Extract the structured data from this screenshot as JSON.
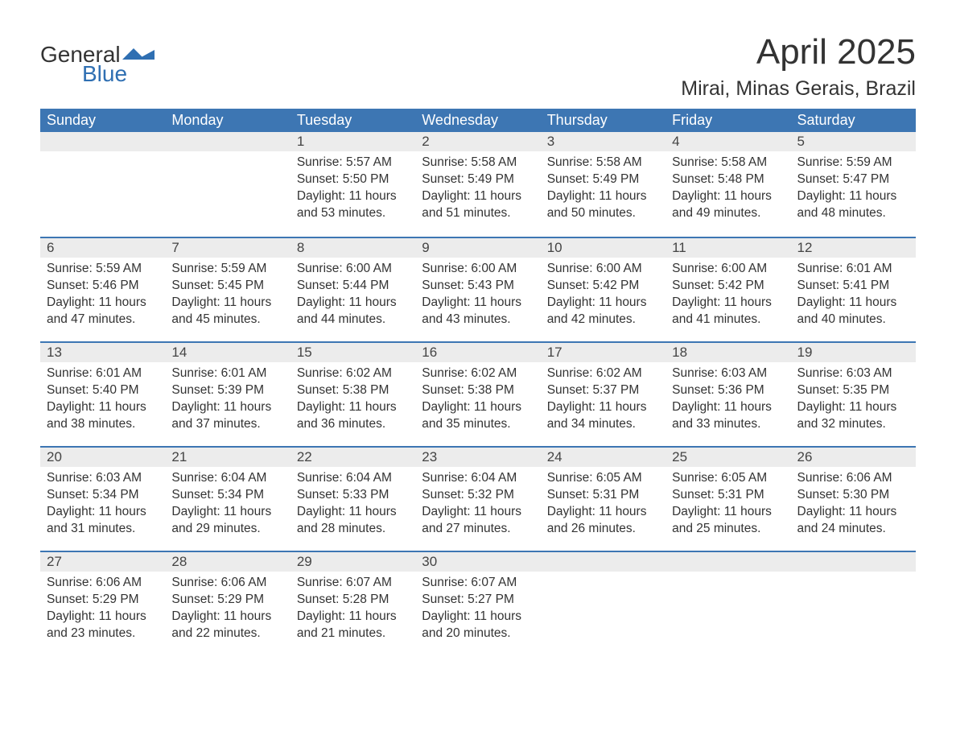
{
  "logo": {
    "word1": "General",
    "word2": "Blue"
  },
  "title": "April 2025",
  "location": "Mirai, Minas Gerais, Brazil",
  "colors": {
    "header_bg": "#3d76b3",
    "header_text": "#ffffff",
    "daynum_bg": "#ececec",
    "border_top": "#3d76b3",
    "text": "#333333",
    "logo_accent": "#2f6fb2",
    "page_bg": "#ffffff"
  },
  "fonts": {
    "title_size_pt": 33,
    "location_size_pt": 19,
    "header_size_pt": 14,
    "daynum_size_pt": 13,
    "body_size_pt": 12
  },
  "weekdays": [
    "Sunday",
    "Monday",
    "Tuesday",
    "Wednesday",
    "Thursday",
    "Friday",
    "Saturday"
  ],
  "weeks": [
    [
      null,
      null,
      {
        "n": "1",
        "sunrise": "Sunrise: 5:57 AM",
        "sunset": "Sunset: 5:50 PM",
        "day1": "Daylight: 11 hours",
        "day2": "and 53 minutes."
      },
      {
        "n": "2",
        "sunrise": "Sunrise: 5:58 AM",
        "sunset": "Sunset: 5:49 PM",
        "day1": "Daylight: 11 hours",
        "day2": "and 51 minutes."
      },
      {
        "n": "3",
        "sunrise": "Sunrise: 5:58 AM",
        "sunset": "Sunset: 5:49 PM",
        "day1": "Daylight: 11 hours",
        "day2": "and 50 minutes."
      },
      {
        "n": "4",
        "sunrise": "Sunrise: 5:58 AM",
        "sunset": "Sunset: 5:48 PM",
        "day1": "Daylight: 11 hours",
        "day2": "and 49 minutes."
      },
      {
        "n": "5",
        "sunrise": "Sunrise: 5:59 AM",
        "sunset": "Sunset: 5:47 PM",
        "day1": "Daylight: 11 hours",
        "day2": "and 48 minutes."
      }
    ],
    [
      {
        "n": "6",
        "sunrise": "Sunrise: 5:59 AM",
        "sunset": "Sunset: 5:46 PM",
        "day1": "Daylight: 11 hours",
        "day2": "and 47 minutes."
      },
      {
        "n": "7",
        "sunrise": "Sunrise: 5:59 AM",
        "sunset": "Sunset: 5:45 PM",
        "day1": "Daylight: 11 hours",
        "day2": "and 45 minutes."
      },
      {
        "n": "8",
        "sunrise": "Sunrise: 6:00 AM",
        "sunset": "Sunset: 5:44 PM",
        "day1": "Daylight: 11 hours",
        "day2": "and 44 minutes."
      },
      {
        "n": "9",
        "sunrise": "Sunrise: 6:00 AM",
        "sunset": "Sunset: 5:43 PM",
        "day1": "Daylight: 11 hours",
        "day2": "and 43 minutes."
      },
      {
        "n": "10",
        "sunrise": "Sunrise: 6:00 AM",
        "sunset": "Sunset: 5:42 PM",
        "day1": "Daylight: 11 hours",
        "day2": "and 42 minutes."
      },
      {
        "n": "11",
        "sunrise": "Sunrise: 6:00 AM",
        "sunset": "Sunset: 5:42 PM",
        "day1": "Daylight: 11 hours",
        "day2": "and 41 minutes."
      },
      {
        "n": "12",
        "sunrise": "Sunrise: 6:01 AM",
        "sunset": "Sunset: 5:41 PM",
        "day1": "Daylight: 11 hours",
        "day2": "and 40 minutes."
      }
    ],
    [
      {
        "n": "13",
        "sunrise": "Sunrise: 6:01 AM",
        "sunset": "Sunset: 5:40 PM",
        "day1": "Daylight: 11 hours",
        "day2": "and 38 minutes."
      },
      {
        "n": "14",
        "sunrise": "Sunrise: 6:01 AM",
        "sunset": "Sunset: 5:39 PM",
        "day1": "Daylight: 11 hours",
        "day2": "and 37 minutes."
      },
      {
        "n": "15",
        "sunrise": "Sunrise: 6:02 AM",
        "sunset": "Sunset: 5:38 PM",
        "day1": "Daylight: 11 hours",
        "day2": "and 36 minutes."
      },
      {
        "n": "16",
        "sunrise": "Sunrise: 6:02 AM",
        "sunset": "Sunset: 5:38 PM",
        "day1": "Daylight: 11 hours",
        "day2": "and 35 minutes."
      },
      {
        "n": "17",
        "sunrise": "Sunrise: 6:02 AM",
        "sunset": "Sunset: 5:37 PM",
        "day1": "Daylight: 11 hours",
        "day2": "and 34 minutes."
      },
      {
        "n": "18",
        "sunrise": "Sunrise: 6:03 AM",
        "sunset": "Sunset: 5:36 PM",
        "day1": "Daylight: 11 hours",
        "day2": "and 33 minutes."
      },
      {
        "n": "19",
        "sunrise": "Sunrise: 6:03 AM",
        "sunset": "Sunset: 5:35 PM",
        "day1": "Daylight: 11 hours",
        "day2": "and 32 minutes."
      }
    ],
    [
      {
        "n": "20",
        "sunrise": "Sunrise: 6:03 AM",
        "sunset": "Sunset: 5:34 PM",
        "day1": "Daylight: 11 hours",
        "day2": "and 31 minutes."
      },
      {
        "n": "21",
        "sunrise": "Sunrise: 6:04 AM",
        "sunset": "Sunset: 5:34 PM",
        "day1": "Daylight: 11 hours",
        "day2": "and 29 minutes."
      },
      {
        "n": "22",
        "sunrise": "Sunrise: 6:04 AM",
        "sunset": "Sunset: 5:33 PM",
        "day1": "Daylight: 11 hours",
        "day2": "and 28 minutes."
      },
      {
        "n": "23",
        "sunrise": "Sunrise: 6:04 AM",
        "sunset": "Sunset: 5:32 PM",
        "day1": "Daylight: 11 hours",
        "day2": "and 27 minutes."
      },
      {
        "n": "24",
        "sunrise": "Sunrise: 6:05 AM",
        "sunset": "Sunset: 5:31 PM",
        "day1": "Daylight: 11 hours",
        "day2": "and 26 minutes."
      },
      {
        "n": "25",
        "sunrise": "Sunrise: 6:05 AM",
        "sunset": "Sunset: 5:31 PM",
        "day1": "Daylight: 11 hours",
        "day2": "and 25 minutes."
      },
      {
        "n": "26",
        "sunrise": "Sunrise: 6:06 AM",
        "sunset": "Sunset: 5:30 PM",
        "day1": "Daylight: 11 hours",
        "day2": "and 24 minutes."
      }
    ],
    [
      {
        "n": "27",
        "sunrise": "Sunrise: 6:06 AM",
        "sunset": "Sunset: 5:29 PM",
        "day1": "Daylight: 11 hours",
        "day2": "and 23 minutes."
      },
      {
        "n": "28",
        "sunrise": "Sunrise: 6:06 AM",
        "sunset": "Sunset: 5:29 PM",
        "day1": "Daylight: 11 hours",
        "day2": "and 22 minutes."
      },
      {
        "n": "29",
        "sunrise": "Sunrise: 6:07 AM",
        "sunset": "Sunset: 5:28 PM",
        "day1": "Daylight: 11 hours",
        "day2": "and 21 minutes."
      },
      {
        "n": "30",
        "sunrise": "Sunrise: 6:07 AM",
        "sunset": "Sunset: 5:27 PM",
        "day1": "Daylight: 11 hours",
        "day2": "and 20 minutes."
      },
      null,
      null,
      null
    ]
  ]
}
